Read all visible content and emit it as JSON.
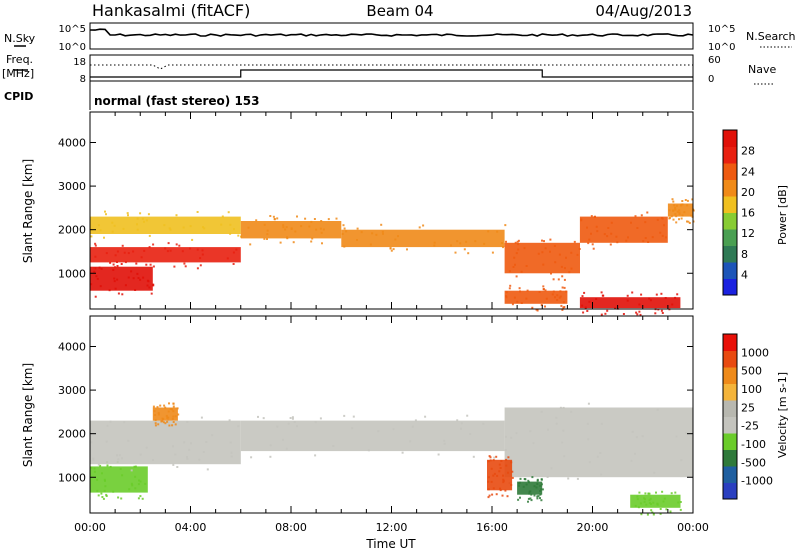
{
  "header": {
    "station": "Hankasalmi (fitACF)",
    "beam": "Beam 04",
    "date": "04/Aug/2013"
  },
  "side_labels": {
    "nsky": "N.Sky",
    "nsearch": "N.Search",
    "freq_top": "Freq.",
    "freq_unit": "[MHz]",
    "cpid": "CPID",
    "nave": "Nave",
    "nsky_ticks": [
      "10^5",
      "10^0"
    ],
    "nsearch_ticks": [
      "10^5",
      "10^0"
    ],
    "freq_ticks": [
      "18",
      "8"
    ],
    "nave_ticks": [
      "60",
      "0"
    ]
  },
  "mode_text": "normal (fast stereo) 153",
  "colors": {
    "velocity_legend": [
      "#2a3fc0",
      "#1f5fa0",
      "#2f7a3a",
      "#6acc2a",
      "#c4c4be",
      "#b8b8b0",
      "#f4b43a",
      "#ee8a1a",
      "#e84a10",
      "#e81008"
    ],
    "power_legend": [
      "#1b22e0",
      "#1d55b8",
      "#2f7a55",
      "#4a9f52",
      "#88cc33",
      "#f0c020",
      "#f08a18",
      "#ee5a10",
      "#e82010",
      "#e01008"
    ]
  },
  "chart_data": [
    {
      "type": "heatmap",
      "name": "power",
      "ylabel": "Slant Range [km]",
      "yticks": [
        1000,
        2000,
        3000,
        4000
      ],
      "ylim": [
        180,
        4700
      ],
      "xlim": [
        0,
        24
      ],
      "colorbar_label": "Power [dB]",
      "colorbar_ticks": [
        "4",
        "8",
        "12",
        "16",
        "20",
        "24",
        "28"
      ],
      "bands": [
        {
          "t0": 0.0,
          "t1": 2.5,
          "r0": 600,
          "r1": 1150,
          "level": 9
        },
        {
          "t0": 0.0,
          "t1": 6.0,
          "r0": 1250,
          "r1": 1600,
          "level": 8
        },
        {
          "t0": 0.0,
          "t1": 6.0,
          "r0": 1900,
          "r1": 2300,
          "level": 5
        },
        {
          "t0": 6.0,
          "t1": 10.0,
          "r0": 1800,
          "r1": 2200,
          "level": 6
        },
        {
          "t0": 10.0,
          "t1": 16.5,
          "r0": 1600,
          "r1": 2000,
          "level": 6
        },
        {
          "t0": 16.5,
          "t1": 19.5,
          "r0": 1000,
          "r1": 1700,
          "level": 7
        },
        {
          "t0": 19.5,
          "t1": 23.0,
          "r0": 1700,
          "r1": 2300,
          "level": 7
        },
        {
          "t0": 23.0,
          "t1": 24.0,
          "r0": 2300,
          "r1": 2600,
          "level": 6
        },
        {
          "t0": 16.5,
          "t1": 19.0,
          "r0": 300,
          "r1": 600,
          "level": 7
        },
        {
          "t0": 19.5,
          "t1": 23.5,
          "r0": 200,
          "r1": 450,
          "level": 9
        }
      ]
    },
    {
      "type": "heatmap",
      "name": "velocity",
      "ylabel": "Slant Range [km]",
      "xlabel": "Time UT",
      "yticks": [
        1000,
        2000,
        3000,
        4000
      ],
      "ylim": [
        180,
        4700
      ],
      "xlim": [
        0,
        24
      ],
      "xticks": [
        "00:00",
        "04:00",
        "08:00",
        "12:00",
        "16:00",
        "20:00",
        "00:00"
      ],
      "colorbar_label": "Velocity [m s-1]",
      "colorbar_ticks": [
        "1000",
        "500",
        "100",
        "25",
        "-25",
        "-100",
        "-500",
        "-1000"
      ],
      "bands": [
        {
          "t0": 0.0,
          "t1": 2.3,
          "r0": 650,
          "r1": 1250,
          "level": 3
        },
        {
          "t0": 0.0,
          "t1": 6.0,
          "r0": 1300,
          "r1": 2300,
          "level": 4
        },
        {
          "t0": 6.0,
          "t1": 16.5,
          "r0": 1600,
          "r1": 2300,
          "level": 4
        },
        {
          "t0": 16.5,
          "t1": 24.0,
          "r0": 1000,
          "r1": 2600,
          "level": 4
        },
        {
          "t0": 21.5,
          "t1": 23.5,
          "r0": 300,
          "r1": 600,
          "level": 3
        },
        {
          "t0": 15.8,
          "t1": 16.8,
          "r0": 700,
          "r1": 1400,
          "level": 8
        },
        {
          "t0": 2.5,
          "t1": 3.5,
          "r0": 2300,
          "r1": 2600,
          "level": 7
        },
        {
          "t0": 17.0,
          "t1": 18.0,
          "r0": 600,
          "r1": 900,
          "level": 2
        }
      ]
    }
  ]
}
